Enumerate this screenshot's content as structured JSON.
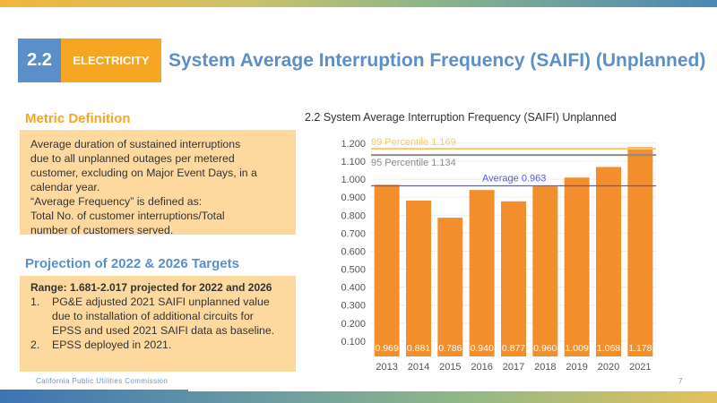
{
  "header": {
    "section_number": "2.2",
    "category": "ELECTRICITY",
    "title": "System Average Interruption Frequency (SAIFI) (Unplanned)"
  },
  "metric": {
    "heading": "Metric Definition",
    "lines": [
      "Average duration of sustained interruptions",
      "due to all unplanned outages per metered",
      "customer, excluding on Major Event Days, in a",
      "calendar year.",
      "“Average Frequency” is defined as:",
      "Total No. of customer interruptions/Total",
      "number of customers served."
    ]
  },
  "projection": {
    "heading": "Projection of 2022 & 2026 Targets",
    "range": "Range: 1.681-2.017 projected for 2022 and 2026",
    "items": [
      {
        "num": "1.",
        "text": "PG&E adjusted 2021 SAIFI unplanned value due to installation of additional circuits for EPSS and used 2021 SAIFI data as baseline."
      },
      {
        "num": "2.",
        "text": "EPSS deployed in 2021."
      }
    ]
  },
  "footer": {
    "org": "California Public Utilities Commission",
    "page": "7"
  },
  "colors": {
    "bar": "#f28e2b",
    "accent_blue": "#5b8fc9",
    "accent_orange": "#f5a623",
    "p99": "#f5c96a",
    "p95": "#8c8c8c",
    "average": "#5555ff"
  },
  "chart_data": {
    "type": "bar",
    "title": "2.2 System Average Interruption Frequency (SAIFI) Unplanned",
    "categories": [
      "2013",
      "2014",
      "2015",
      "2016",
      "2017",
      "2018",
      "2019",
      "2020",
      "2021"
    ],
    "values": [
      0.969,
      0.881,
      0.786,
      0.94,
      0.877,
      0.96,
      1.009,
      1.068,
      1.178
    ],
    "value_labels": [
      "0.969",
      "0.881",
      "0.786",
      "0.940",
      "0.877",
      "0.960",
      "1.009",
      "1.068",
      "1.178"
    ],
    "ylim": [
      0,
      1.2
    ],
    "yticks": [
      "0.100",
      "0.200",
      "0.300",
      "0.400",
      "0.500",
      "0.600",
      "0.700",
      "0.800",
      "0.900",
      "1.000",
      "1.100",
      "1.200"
    ],
    "grid": true,
    "reference_lines": [
      {
        "label": "99 Percentile 1.169",
        "value": 1.169,
        "color": "#f5c96a"
      },
      {
        "label": "95 Percentile 1.134",
        "value": 1.134,
        "color": "#8c8c8c"
      },
      {
        "label": "Average 0.963",
        "value": 0.963,
        "color": "#5555ff"
      }
    ]
  }
}
